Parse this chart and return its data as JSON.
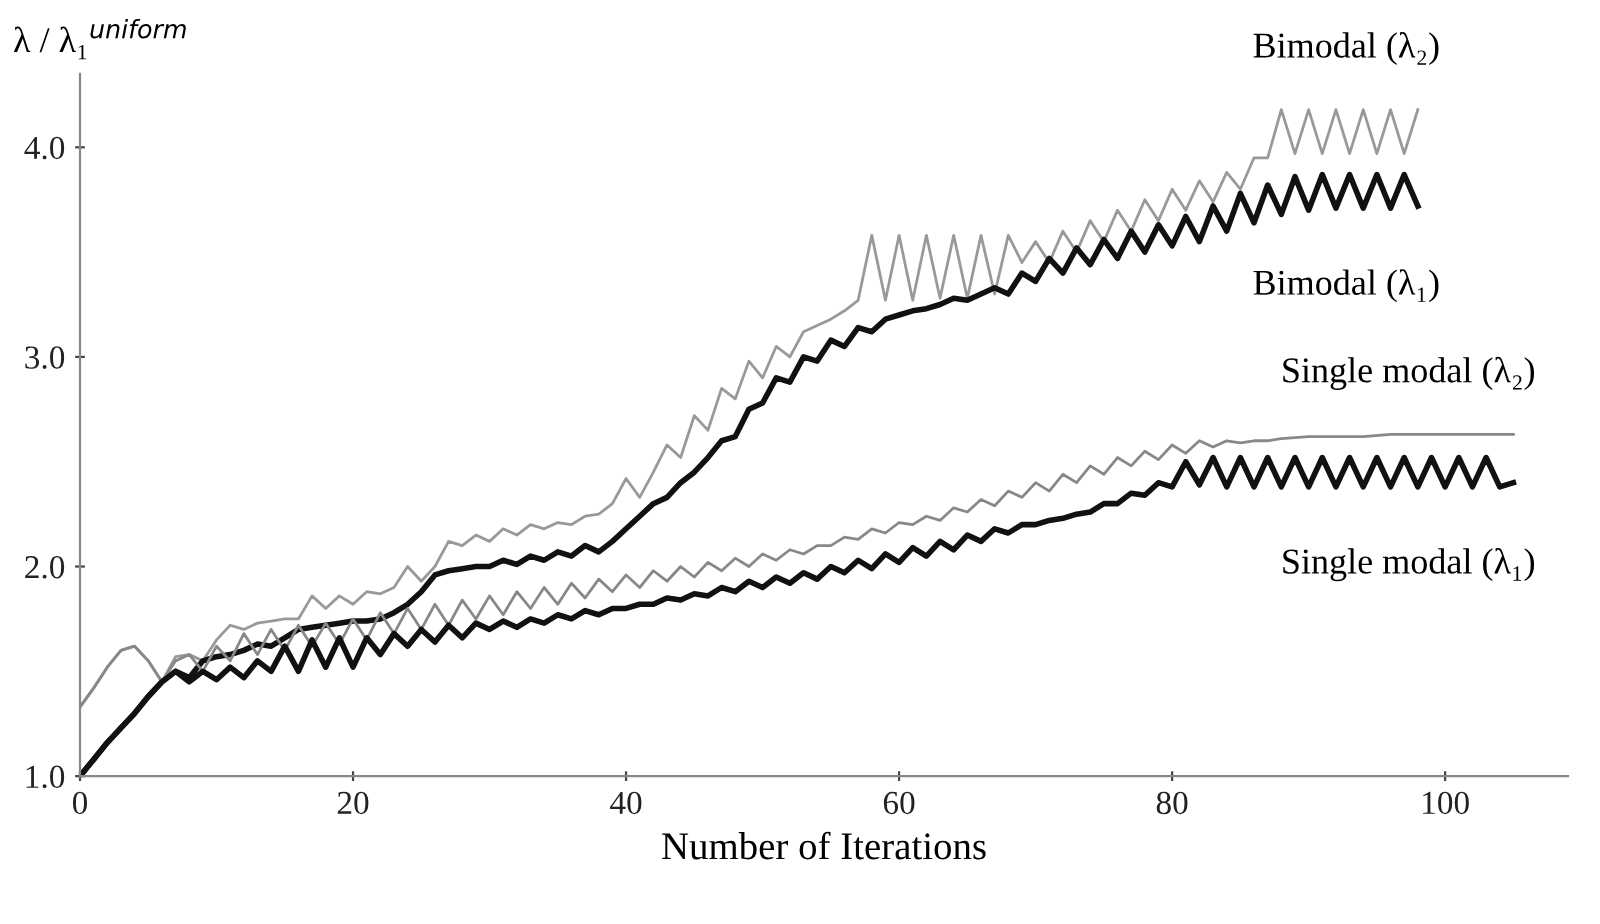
{
  "chart_data": {
    "type": "line",
    "xlabel": "Number of Iterations",
    "ylabel": "λ / λ₁$^{uniform}$",
    "xlim": [
      0,
      109
    ],
    "ylim": [
      1.0,
      4.35
    ],
    "xticks": [
      0,
      20,
      40,
      60,
      80,
      100
    ],
    "yticks": [
      {
        "value": 1.0,
        "label": "1.0"
      },
      {
        "value": 2.0,
        "label": "2.0"
      },
      {
        "value": 3.0,
        "label": "3.0"
      },
      {
        "value": 4.0,
        "label": "4.0"
      }
    ],
    "grid": false,
    "legend": false,
    "marker": "none",
    "line_style": "solid",
    "series": [
      {
        "name": "Bimodal (λ₂)",
        "color": "#999999",
        "x": [
          0,
          1,
          2,
          3,
          4,
          5,
          6,
          7,
          8,
          9,
          10,
          11,
          12,
          13,
          14,
          15,
          16,
          17,
          18,
          19,
          20,
          21,
          22,
          23,
          24,
          25,
          26,
          27,
          28,
          29,
          30,
          31,
          32,
          33,
          34,
          35,
          36,
          37,
          38,
          39,
          40,
          41,
          42,
          43,
          44,
          45,
          46,
          47,
          48,
          49,
          50,
          51,
          52,
          53,
          54,
          55,
          56,
          57,
          58,
          59,
          60,
          61,
          62,
          63,
          64,
          65,
          66,
          67,
          68,
          69,
          70,
          71,
          72,
          73,
          74,
          75,
          76,
          77,
          78,
          79,
          80,
          81,
          82,
          83,
          84,
          85,
          86,
          87,
          88,
          89,
          90,
          91,
          92,
          93,
          94,
          95,
          96,
          97,
          98
        ],
        "values": [
          1.33,
          1.42,
          1.52,
          1.6,
          1.62,
          1.55,
          1.45,
          1.57,
          1.58,
          1.55,
          1.65,
          1.72,
          1.7,
          1.73,
          1.74,
          1.75,
          1.75,
          1.86,
          1.8,
          1.86,
          1.82,
          1.88,
          1.87,
          1.9,
          2.0,
          1.93,
          2.0,
          2.12,
          2.1,
          2.15,
          2.12,
          2.18,
          2.15,
          2.2,
          2.18,
          2.21,
          2.2,
          2.24,
          2.25,
          2.3,
          2.42,
          2.33,
          2.45,
          2.58,
          2.52,
          2.72,
          2.65,
          2.85,
          2.8,
          2.98,
          2.9,
          3.05,
          3.0,
          3.12,
          3.15,
          3.18,
          3.22,
          3.27,
          3.58,
          3.27,
          3.58,
          3.27,
          3.58,
          3.28,
          3.58,
          3.28,
          3.58,
          3.3,
          3.58,
          3.45,
          3.55,
          3.45,
          3.6,
          3.5,
          3.65,
          3.55,
          3.7,
          3.6,
          3.75,
          3.65,
          3.8,
          3.7,
          3.84,
          3.74,
          3.88,
          3.8,
          3.95,
          3.95,
          4.18,
          3.97,
          4.18,
          3.97,
          4.18,
          3.97,
          4.18,
          3.97,
          4.18,
          3.97,
          4.18
        ]
      },
      {
        "name": "Bimodal (λ₁)",
        "color": "#111111",
        "x": [
          0,
          1,
          2,
          3,
          4,
          5,
          6,
          7,
          8,
          9,
          10,
          11,
          12,
          13,
          14,
          15,
          16,
          17,
          18,
          19,
          20,
          21,
          22,
          23,
          24,
          25,
          26,
          27,
          28,
          29,
          30,
          31,
          32,
          33,
          34,
          35,
          36,
          37,
          38,
          39,
          40,
          41,
          42,
          43,
          44,
          45,
          46,
          47,
          48,
          49,
          50,
          51,
          52,
          53,
          54,
          55,
          56,
          57,
          58,
          59,
          60,
          61,
          62,
          63,
          64,
          65,
          66,
          67,
          68,
          69,
          70,
          71,
          72,
          73,
          74,
          75,
          76,
          77,
          78,
          79,
          80,
          81,
          82,
          83,
          84,
          85,
          86,
          87,
          88,
          89,
          90,
          91,
          92,
          93,
          94,
          95,
          96,
          97,
          98
        ],
        "values": [
          1.0,
          1.08,
          1.16,
          1.23,
          1.3,
          1.38,
          1.45,
          1.5,
          1.47,
          1.55,
          1.57,
          1.58,
          1.6,
          1.63,
          1.62,
          1.66,
          1.7,
          1.71,
          1.72,
          1.73,
          1.74,
          1.74,
          1.75,
          1.78,
          1.82,
          1.88,
          1.96,
          1.98,
          1.99,
          2.0,
          2.0,
          2.03,
          2.01,
          2.05,
          2.03,
          2.07,
          2.05,
          2.1,
          2.07,
          2.12,
          2.18,
          2.24,
          2.3,
          2.33,
          2.4,
          2.45,
          2.52,
          2.6,
          2.62,
          2.75,
          2.78,
          2.9,
          2.88,
          3.0,
          2.98,
          3.08,
          3.05,
          3.14,
          3.12,
          3.18,
          3.2,
          3.22,
          3.23,
          3.25,
          3.28,
          3.27,
          3.3,
          3.33,
          3.3,
          3.4,
          3.36,
          3.47,
          3.4,
          3.52,
          3.44,
          3.56,
          3.47,
          3.6,
          3.5,
          3.63,
          3.53,
          3.67,
          3.55,
          3.72,
          3.6,
          3.78,
          3.64,
          3.82,
          3.68,
          3.86,
          3.7,
          3.87,
          3.71,
          3.87,
          3.71,
          3.87,
          3.71,
          3.87,
          3.72
        ]
      },
      {
        "name": "Single modal (λ₂)",
        "color": "#888888",
        "x": [
          0,
          1,
          2,
          3,
          4,
          5,
          6,
          7,
          8,
          9,
          10,
          11,
          12,
          13,
          14,
          15,
          16,
          17,
          18,
          19,
          20,
          21,
          22,
          23,
          24,
          25,
          26,
          27,
          28,
          29,
          30,
          31,
          32,
          33,
          34,
          35,
          36,
          37,
          38,
          39,
          40,
          41,
          42,
          43,
          44,
          45,
          46,
          47,
          48,
          49,
          50,
          51,
          52,
          53,
          54,
          55,
          56,
          57,
          58,
          59,
          60,
          61,
          62,
          63,
          64,
          65,
          66,
          67,
          68,
          69,
          70,
          71,
          72,
          73,
          74,
          75,
          76,
          77,
          78,
          79,
          80,
          81,
          82,
          83,
          84,
          85,
          86,
          87,
          88,
          90,
          92,
          94,
          96,
          98,
          100,
          102,
          105
        ],
        "values": [
          1.33,
          1.42,
          1.52,
          1.6,
          1.62,
          1.55,
          1.45,
          1.55,
          1.58,
          1.5,
          1.62,
          1.55,
          1.68,
          1.58,
          1.7,
          1.6,
          1.72,
          1.62,
          1.73,
          1.63,
          1.75,
          1.65,
          1.78,
          1.68,
          1.8,
          1.7,
          1.82,
          1.72,
          1.84,
          1.75,
          1.86,
          1.77,
          1.88,
          1.8,
          1.9,
          1.82,
          1.92,
          1.85,
          1.94,
          1.88,
          1.96,
          1.9,
          1.98,
          1.93,
          2.0,
          1.95,
          2.02,
          1.98,
          2.04,
          2.0,
          2.06,
          2.03,
          2.08,
          2.06,
          2.1,
          2.1,
          2.14,
          2.13,
          2.18,
          2.16,
          2.21,
          2.2,
          2.24,
          2.22,
          2.28,
          2.26,
          2.32,
          2.29,
          2.36,
          2.33,
          2.4,
          2.36,
          2.44,
          2.4,
          2.48,
          2.44,
          2.52,
          2.48,
          2.55,
          2.51,
          2.58,
          2.54,
          2.6,
          2.57,
          2.6,
          2.59,
          2.6,
          2.6,
          2.61,
          2.62,
          2.62,
          2.62,
          2.63,
          2.63,
          2.63,
          2.63,
          2.63
        ]
      },
      {
        "name": "Single modal (λ₁)",
        "color": "#111111",
        "x": [
          0,
          1,
          2,
          3,
          4,
          5,
          6,
          7,
          8,
          9,
          10,
          11,
          12,
          13,
          14,
          15,
          16,
          17,
          18,
          19,
          20,
          21,
          22,
          23,
          24,
          25,
          26,
          27,
          28,
          29,
          30,
          31,
          32,
          33,
          34,
          35,
          36,
          37,
          38,
          39,
          40,
          41,
          42,
          43,
          44,
          45,
          46,
          47,
          48,
          49,
          50,
          51,
          52,
          53,
          54,
          55,
          56,
          57,
          58,
          59,
          60,
          61,
          62,
          63,
          64,
          65,
          66,
          67,
          68,
          69,
          70,
          71,
          72,
          73,
          74,
          75,
          76,
          77,
          78,
          79,
          80,
          81,
          82,
          83,
          84,
          85,
          86,
          87,
          88,
          89,
          90,
          91,
          92,
          93,
          94,
          95,
          96,
          97,
          98,
          99,
          100,
          101,
          102,
          103,
          104,
          105
        ],
        "values": [
          1.0,
          1.08,
          1.16,
          1.23,
          1.3,
          1.38,
          1.45,
          1.5,
          1.45,
          1.5,
          1.46,
          1.52,
          1.47,
          1.55,
          1.5,
          1.62,
          1.5,
          1.65,
          1.52,
          1.66,
          1.52,
          1.66,
          1.58,
          1.68,
          1.62,
          1.7,
          1.64,
          1.72,
          1.66,
          1.73,
          1.7,
          1.74,
          1.71,
          1.75,
          1.73,
          1.77,
          1.75,
          1.79,
          1.77,
          1.8,
          1.8,
          1.82,
          1.82,
          1.85,
          1.84,
          1.87,
          1.86,
          1.9,
          1.88,
          1.93,
          1.9,
          1.95,
          1.92,
          1.97,
          1.94,
          2.0,
          1.97,
          2.03,
          1.99,
          2.06,
          2.02,
          2.09,
          2.05,
          2.12,
          2.08,
          2.15,
          2.12,
          2.18,
          2.16,
          2.2,
          2.2,
          2.22,
          2.23,
          2.25,
          2.26,
          2.3,
          2.3,
          2.35,
          2.34,
          2.4,
          2.38,
          2.5,
          2.39,
          2.52,
          2.38,
          2.52,
          2.38,
          2.52,
          2.38,
          2.52,
          2.38,
          2.52,
          2.38,
          2.52,
          2.38,
          2.52,
          2.38,
          2.52,
          2.38,
          2.52,
          2.38,
          2.52,
          2.38,
          2.52,
          2.38,
          2.4
        ]
      }
    ]
  }
}
